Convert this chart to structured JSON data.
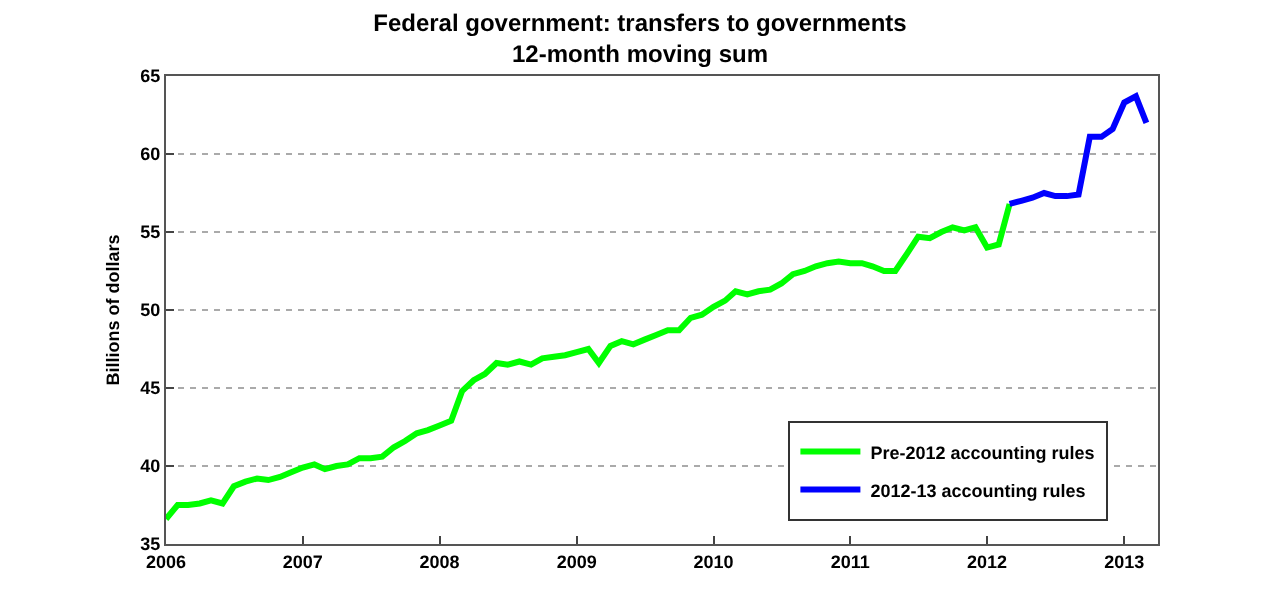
{
  "chart_data": {
    "type": "line",
    "title": "Federal government: transfers to governments\n12-month moving sum",
    "ylabel": "Billions of dollars",
    "xlim": [
      "2006-01-01",
      "2013-04-01"
    ],
    "xticks": [
      "2006",
      "2007",
      "2008",
      "2009",
      "2010",
      "2011",
      "2012",
      "2013"
    ],
    "ylim": [
      35,
      65
    ],
    "yticks": [
      35,
      40,
      45,
      50,
      55,
      60,
      65
    ],
    "grid": "y",
    "legend": "bottom right",
    "marker": "none",
    "line_style": "solid",
    "series": [
      {
        "name": "Pre-2012 accounting rules",
        "color": "#00ff00",
        "x": [
          "2006-01",
          "2006-02",
          "2006-03",
          "2006-04",
          "2006-05",
          "2006-06",
          "2006-07",
          "2006-08",
          "2006-09",
          "2006-10",
          "2006-11",
          "2006-12",
          "2007-01",
          "2007-02",
          "2007-03",
          "2007-04",
          "2007-05",
          "2007-06",
          "2007-07",
          "2007-08",
          "2007-09",
          "2007-10",
          "2007-11",
          "2007-12",
          "2008-01",
          "2008-02",
          "2008-03",
          "2008-04",
          "2008-05",
          "2008-06",
          "2008-07",
          "2008-08",
          "2008-09",
          "2008-10",
          "2008-11",
          "2008-12",
          "2009-01",
          "2009-02",
          "2009-03",
          "2009-04",
          "2009-05",
          "2009-06",
          "2009-07",
          "2009-08",
          "2009-09",
          "2009-10",
          "2009-11",
          "2009-12",
          "2010-01",
          "2010-02",
          "2010-03",
          "2010-04",
          "2010-05",
          "2010-06",
          "2010-07",
          "2010-08",
          "2010-09",
          "2010-10",
          "2010-11",
          "2010-12",
          "2011-01",
          "2011-02",
          "2011-03",
          "2011-04",
          "2011-05",
          "2011-06",
          "2011-07",
          "2011-08",
          "2011-09",
          "2011-10",
          "2011-11",
          "2011-12",
          "2012-01",
          "2012-02",
          "2012-03"
        ],
        "values": [
          36.6,
          37.5,
          37.5,
          37.6,
          37.8,
          37.6,
          38.7,
          39.0,
          39.2,
          39.1,
          39.3,
          39.6,
          39.9,
          40.1,
          39.8,
          40.0,
          40.1,
          40.5,
          40.5,
          40.6,
          41.2,
          41.6,
          42.1,
          42.3,
          42.6,
          42.9,
          44.8,
          45.5,
          45.9,
          46.6,
          46.5,
          46.7,
          46.5,
          46.9,
          47.0,
          47.1,
          47.3,
          47.5,
          46.6,
          47.7,
          48.0,
          47.8,
          48.1,
          48.4,
          48.7,
          48.7,
          49.5,
          49.7,
          50.2,
          50.6,
          51.2,
          51.0,
          51.2,
          51.3,
          51.7,
          52.3,
          52.5,
          52.8,
          53.0,
          53.1,
          53.0,
          53.0,
          52.8,
          52.5,
          52.5,
          53.6,
          54.7,
          54.6,
          55.0,
          55.3,
          55.1,
          55.3,
          54.0,
          54.2,
          56.8
        ]
      },
      {
        "name": "2012-13 accounting rules",
        "color": "#0000ff",
        "x": [
          "2012-03",
          "2012-04",
          "2012-05",
          "2012-06",
          "2012-07",
          "2012-08",
          "2012-09",
          "2012-10",
          "2012-11",
          "2012-12",
          "2013-01",
          "2013-02",
          "2013-03"
        ],
        "values": [
          56.8,
          57.0,
          57.2,
          57.5,
          57.3,
          57.3,
          57.4,
          61.1,
          61.1,
          61.6,
          63.3,
          63.7,
          62.0
        ]
      }
    ]
  }
}
